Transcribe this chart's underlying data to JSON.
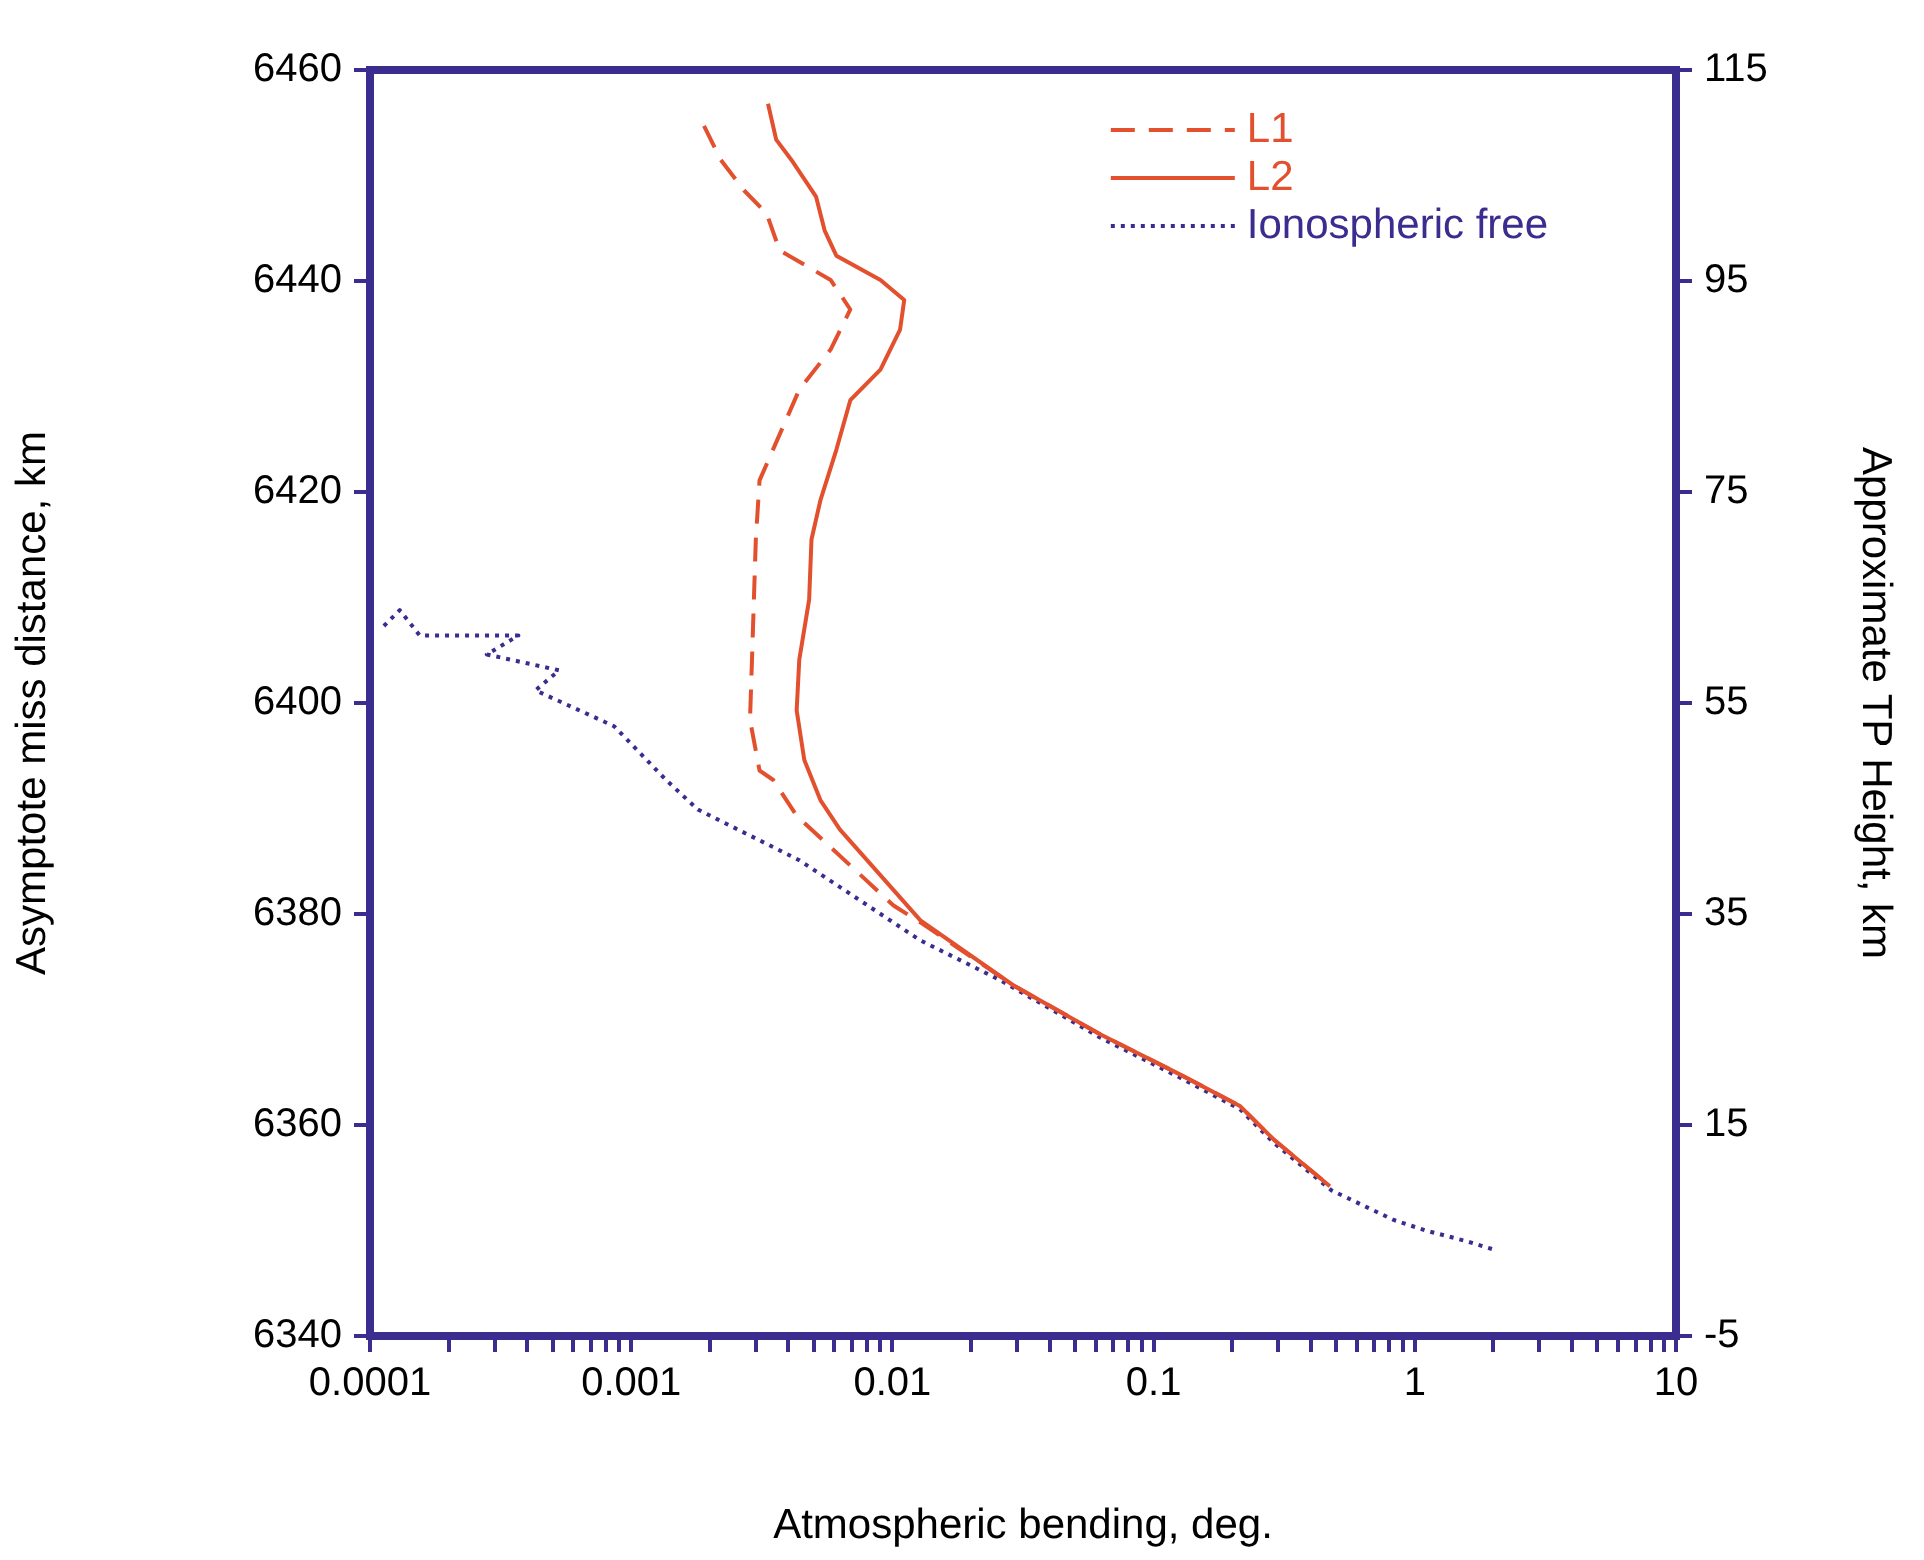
{
  "chart_data": {
    "type": "line",
    "xlabel": "Atmospheric bending, deg.",
    "ylabel": "Asymptote miss distance, km",
    "y2label": "Approximate TP Height, km",
    "log": "x",
    "legend": "top right",
    "grid": false,
    "marker": "none",
    "xlim": [
      0.0001,
      10
    ],
    "xticks": [
      0.0001,
      {
        "value": 0.0002,
        "label": null
      },
      {
        "value": 0.0003,
        "label": null
      },
      {
        "value": 0.0004,
        "label": null
      },
      {
        "value": 0.0005,
        "label": null
      },
      {
        "value": 0.0006,
        "label": null
      },
      {
        "value": 0.0007,
        "label": null
      },
      {
        "value": 0.0008,
        "label": null
      },
      {
        "value": 0.0009,
        "label": null
      },
      0.001,
      {
        "value": 0.002,
        "label": null
      },
      {
        "value": 0.003,
        "label": null
      },
      {
        "value": 0.004,
        "label": null
      },
      {
        "value": 0.005,
        "label": null
      },
      {
        "value": 0.006,
        "label": null
      },
      {
        "value": 0.007,
        "label": null
      },
      {
        "value": 0.008,
        "label": null
      },
      {
        "value": 0.009,
        "label": null
      },
      0.01,
      {
        "value": 0.02,
        "label": null
      },
      {
        "value": 0.03,
        "label": null
      },
      {
        "value": 0.04,
        "label": null
      },
      {
        "value": 0.05,
        "label": null
      },
      {
        "value": 0.06,
        "label": null
      },
      {
        "value": 0.07,
        "label": null
      },
      {
        "value": 0.08,
        "label": null
      },
      {
        "value": 0.09,
        "label": null
      },
      0.1,
      {
        "value": 0.2,
        "label": null
      },
      {
        "value": 0.3,
        "label": null
      },
      {
        "value": 0.4,
        "label": null
      },
      {
        "value": 0.5,
        "label": null
      },
      {
        "value": 0.6,
        "label": null
      },
      {
        "value": 0.7,
        "label": null
      },
      {
        "value": 0.8,
        "label": null
      },
      {
        "value": 0.9,
        "label": null
      },
      1,
      {
        "value": 2,
        "label": null
      },
      {
        "value": 3,
        "label": null
      },
      {
        "value": 4,
        "label": null
      },
      {
        "value": 5,
        "label": null
      },
      {
        "value": 6,
        "label": null
      },
      {
        "value": 7,
        "label": null
      },
      {
        "value": 8,
        "label": null
      },
      {
        "value": 9,
        "label": null
      },
      10
    ],
    "ylim": [
      6340,
      6460
    ],
    "yticks": [
      6340,
      6360,
      6380,
      6400,
      6420,
      6440,
      6460
    ],
    "y2lim": [
      -5,
      115
    ],
    "y2ticks": [
      -5,
      15,
      35,
      55,
      75,
      95,
      115
    ],
    "series": [
      {
        "name": "L1",
        "color": "#e2502e",
        "line_style": "dashed",
        "x": [
          0.0019,
          0.0022,
          0.0027,
          0.0033,
          0.0037,
          0.0058,
          0.0069,
          0.0058,
          0.0044,
          0.0031,
          0.003,
          0.0029,
          0.00285,
          0.0031,
          0.0035,
          0.0043,
          0.0101,
          0.0128,
          0.0292,
          0.0624,
          0.126,
          0.214,
          0.289,
          0.473
        ],
        "values": [
          6454.7,
          6451.5,
          6448.6,
          6446.4,
          6442.9,
          6440.1,
          6437.3,
          6433.5,
          6429.7,
          6421.1,
          6415.5,
          6404.1,
          6398.4,
          6393.6,
          6392.7,
          6389.3,
          6380.8,
          6379.2,
          6373.2,
          6368.6,
          6364.8,
          6361.8,
          6358.6,
          6354.2
        ]
      },
      {
        "name": "L2",
        "color": "#e2502e",
        "line_style": "solid",
        "x": [
          0.00334,
          0.00359,
          0.0041,
          0.0051,
          0.0055,
          0.0061,
          0.009,
          0.0111,
          0.0107,
          0.009,
          0.0069,
          0.0061,
          0.0053,
          0.0049,
          0.0048,
          0.0044,
          0.0043,
          0.0046,
          0.0053,
          0.0063,
          0.0128,
          0.0292,
          0.0624,
          0.126,
          0.214,
          0.289,
          0.473
        ],
        "values": [
          6456.8,
          6453.4,
          6451.5,
          6448,
          6444.8,
          6442.4,
          6440.1,
          6438.2,
          6435.4,
          6431.6,
          6428.7,
          6424,
          6419.2,
          6415.5,
          6409.8,
          6404.1,
          6399.3,
          6394.6,
          6390.8,
          6388,
          6379.4,
          6373.2,
          6368.6,
          6364.8,
          6361.8,
          6358.6,
          6354.2
        ]
      },
      {
        "name": "Ionospheric free",
        "color": "#3b2d8f",
        "line_style": "dotted",
        "x": [
          0.000113,
          0.00013,
          0.000155,
          0.00037,
          0.00028,
          0.00053,
          0.00043,
          0.00086,
          0.00136,
          0.0018,
          0.0044,
          0.0128,
          0.026,
          0.0624,
          0.126,
          0.214,
          0.289,
          0.48,
          0.83,
          1.1,
          1.57,
          2.0
        ],
        "values": [
          6407.3,
          6408.8,
          6406.4,
          6406.4,
          6404.6,
          6403.1,
          6401.2,
          6397.8,
          6392.7,
          6389.9,
          6385.1,
          6377.5,
          6373.7,
          6368.3,
          6364.5,
          6361.5,
          6358.3,
          6353.8,
          6351,
          6350,
          6349,
          6348.2
        ]
      }
    ]
  }
}
